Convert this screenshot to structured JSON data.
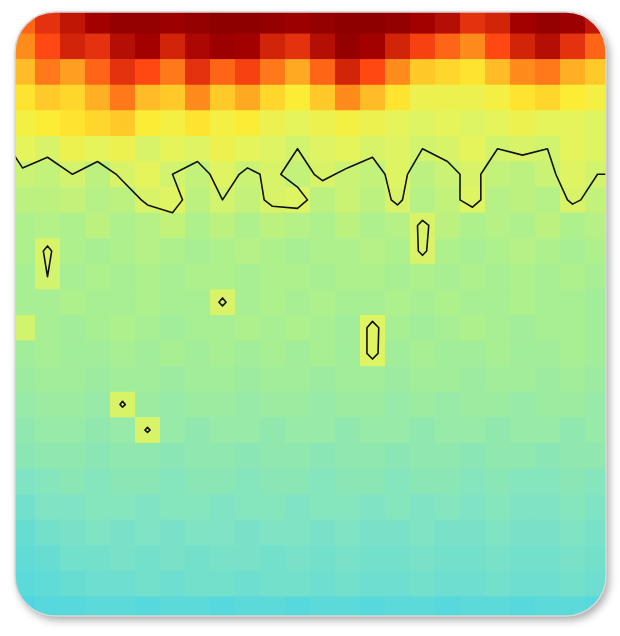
{
  "chart_data": {
    "type": "heatmap",
    "tick_labels": false,
    "zlim": [
      0,
      1
    ],
    "contour_level": 0.55,
    "cells": [
      [
        0.82,
        0.88,
        0.92,
        0.95,
        0.97,
        0.97,
        0.96,
        0.97,
        0.98,
        0.98,
        0.97,
        0.96,
        0.97,
        0.98,
        0.98,
        0.97,
        0.95,
        0.93,
        0.88,
        0.9,
        0.95,
        0.97,
        0.96,
        0.92
      ],
      [
        0.78,
        0.85,
        0.9,
        0.88,
        0.93,
        0.95,
        0.9,
        0.94,
        0.96,
        0.95,
        0.9,
        0.88,
        0.93,
        0.97,
        0.95,
        0.9,
        0.86,
        0.82,
        0.78,
        0.85,
        0.9,
        0.93,
        0.88,
        0.82
      ],
      [
        0.72,
        0.8,
        0.76,
        0.82,
        0.88,
        0.85,
        0.8,
        0.88,
        0.82,
        0.86,
        0.8,
        0.75,
        0.82,
        0.9,
        0.85,
        0.78,
        0.7,
        0.68,
        0.66,
        0.72,
        0.78,
        0.8,
        0.74,
        0.7
      ],
      [
        0.66,
        0.7,
        0.68,
        0.74,
        0.8,
        0.72,
        0.7,
        0.78,
        0.7,
        0.75,
        0.68,
        0.64,
        0.7,
        0.78,
        0.72,
        0.66,
        0.6,
        0.6,
        0.6,
        0.62,
        0.66,
        0.68,
        0.64,
        0.62
      ],
      [
        0.62,
        0.64,
        0.66,
        0.68,
        0.7,
        0.64,
        0.62,
        0.66,
        0.62,
        0.64,
        0.6,
        0.58,
        0.6,
        0.62,
        0.6,
        0.58,
        0.57,
        0.58,
        0.57,
        0.58,
        0.6,
        0.58,
        0.58,
        0.57
      ],
      [
        0.58,
        0.56,
        0.6,
        0.58,
        0.6,
        0.56,
        0.58,
        0.57,
        0.6,
        0.58,
        0.57,
        0.55,
        0.57,
        0.58,
        0.56,
        0.57,
        0.55,
        0.56,
        0.58,
        0.55,
        0.56,
        0.55,
        0.58,
        0.57
      ],
      [
        0.54,
        0.53,
        0.55,
        0.52,
        0.56,
        0.58,
        0.55,
        0.53,
        0.57,
        0.54,
        0.56,
        0.53,
        0.56,
        0.54,
        0.53,
        0.57,
        0.52,
        0.54,
        0.56,
        0.53,
        0.52,
        0.54,
        0.57,
        0.55
      ],
      [
        0.52,
        0.52,
        0.53,
        0.51,
        0.52,
        0.56,
        0.57,
        0.52,
        0.55,
        0.53,
        0.56,
        0.57,
        0.52,
        0.54,
        0.52,
        0.56,
        0.51,
        0.53,
        0.57,
        0.51,
        0.52,
        0.51,
        0.56,
        0.53
      ],
      [
        0.5,
        0.51,
        0.5,
        0.52,
        0.5,
        0.51,
        0.53,
        0.5,
        0.52,
        0.5,
        0.52,
        0.51,
        0.5,
        0.52,
        0.5,
        0.51,
        0.56,
        0.52,
        0.5,
        0.51,
        0.5,
        0.52,
        0.5,
        0.51
      ],
      [
        0.5,
        0.56,
        0.5,
        0.49,
        0.5,
        0.51,
        0.5,
        0.49,
        0.5,
        0.51,
        0.5,
        0.49,
        0.5,
        0.5,
        0.51,
        0.5,
        0.56,
        0.5,
        0.49,
        0.5,
        0.51,
        0.5,
        0.49,
        0.5
      ],
      [
        0.49,
        0.55,
        0.49,
        0.5,
        0.49,
        0.5,
        0.49,
        0.5,
        0.5,
        0.49,
        0.5,
        0.5,
        0.49,
        0.5,
        0.5,
        0.49,
        0.5,
        0.49,
        0.5,
        0.49,
        0.5,
        0.49,
        0.5,
        0.49
      ],
      [
        0.49,
        0.49,
        0.5,
        0.49,
        0.49,
        0.5,
        0.49,
        0.49,
        0.56,
        0.49,
        0.5,
        0.49,
        0.5,
        0.49,
        0.49,
        0.5,
        0.49,
        0.5,
        0.49,
        0.49,
        0.5,
        0.49,
        0.49,
        0.48
      ],
      [
        0.55,
        0.49,
        0.48,
        0.49,
        0.5,
        0.49,
        0.48,
        0.49,
        0.49,
        0.5,
        0.49,
        0.5,
        0.49,
        0.48,
        0.57,
        0.49,
        0.48,
        0.49,
        0.5,
        0.49,
        0.48,
        0.49,
        0.49,
        0.48
      ],
      [
        0.48,
        0.49,
        0.48,
        0.48,
        0.49,
        0.48,
        0.49,
        0.48,
        0.49,
        0.48,
        0.49,
        0.48,
        0.49,
        0.48,
        0.57,
        0.48,
        0.49,
        0.48,
        0.48,
        0.49,
        0.48,
        0.48,
        0.49,
        0.48
      ],
      [
        0.47,
        0.48,
        0.48,
        0.47,
        0.48,
        0.48,
        0.47,
        0.48,
        0.48,
        0.47,
        0.48,
        0.48,
        0.47,
        0.48,
        0.48,
        0.47,
        0.48,
        0.48,
        0.47,
        0.48,
        0.48,
        0.47,
        0.48,
        0.47
      ],
      [
        0.46,
        0.47,
        0.47,
        0.46,
        0.56,
        0.47,
        0.46,
        0.47,
        0.47,
        0.46,
        0.47,
        0.47,
        0.46,
        0.47,
        0.47,
        0.46,
        0.47,
        0.46,
        0.47,
        0.47,
        0.46,
        0.47,
        0.47,
        0.46
      ],
      [
        0.45,
        0.46,
        0.46,
        0.45,
        0.46,
        0.56,
        0.46,
        0.45,
        0.46,
        0.46,
        0.45,
        0.46,
        0.46,
        0.45,
        0.46,
        0.46,
        0.45,
        0.46,
        0.46,
        0.45,
        0.46,
        0.46,
        0.45,
        0.46
      ],
      [
        0.44,
        0.45,
        0.45,
        0.44,
        0.45,
        0.45,
        0.44,
        0.45,
        0.45,
        0.44,
        0.45,
        0.45,
        0.44,
        0.45,
        0.45,
        0.44,
        0.45,
        0.45,
        0.44,
        0.45,
        0.45,
        0.44,
        0.45,
        0.45
      ],
      [
        0.42,
        0.43,
        0.44,
        0.43,
        0.44,
        0.44,
        0.43,
        0.44,
        0.44,
        0.43,
        0.44,
        0.44,
        0.43,
        0.44,
        0.44,
        0.43,
        0.44,
        0.44,
        0.43,
        0.44,
        0.43,
        0.43,
        0.44,
        0.43
      ],
      [
        0.4,
        0.42,
        0.42,
        0.43,
        0.43,
        0.42,
        0.43,
        0.43,
        0.42,
        0.43,
        0.43,
        0.42,
        0.43,
        0.43,
        0.42,
        0.43,
        0.42,
        0.43,
        0.42,
        0.43,
        0.42,
        0.42,
        0.43,
        0.42
      ],
      [
        0.38,
        0.4,
        0.41,
        0.42,
        0.41,
        0.42,
        0.41,
        0.42,
        0.42,
        0.41,
        0.42,
        0.42,
        0.41,
        0.42,
        0.41,
        0.41,
        0.42,
        0.41,
        0.41,
        0.42,
        0.41,
        0.41,
        0.42,
        0.41
      ],
      [
        0.37,
        0.38,
        0.4,
        0.4,
        0.41,
        0.4,
        0.41,
        0.4,
        0.41,
        0.41,
        0.4,
        0.41,
        0.4,
        0.41,
        0.4,
        0.4,
        0.41,
        0.4,
        0.4,
        0.41,
        0.4,
        0.4,
        0.41,
        0.4
      ],
      [
        0.36,
        0.37,
        0.38,
        0.39,
        0.39,
        0.4,
        0.39,
        0.4,
        0.4,
        0.39,
        0.4,
        0.4,
        0.39,
        0.4,
        0.39,
        0.39,
        0.4,
        0.39,
        0.39,
        0.4,
        0.39,
        0.39,
        0.4,
        0.39
      ],
      [
        0.34,
        0.35,
        0.35,
        0.36,
        0.36,
        0.35,
        0.36,
        0.36,
        0.35,
        0.36,
        0.36,
        0.35,
        0.36,
        0.36,
        0.35,
        0.36,
        0.36,
        0.35,
        0.36,
        0.36,
        0.35,
        0.36,
        0.36,
        0.35
      ]
    ]
  }
}
